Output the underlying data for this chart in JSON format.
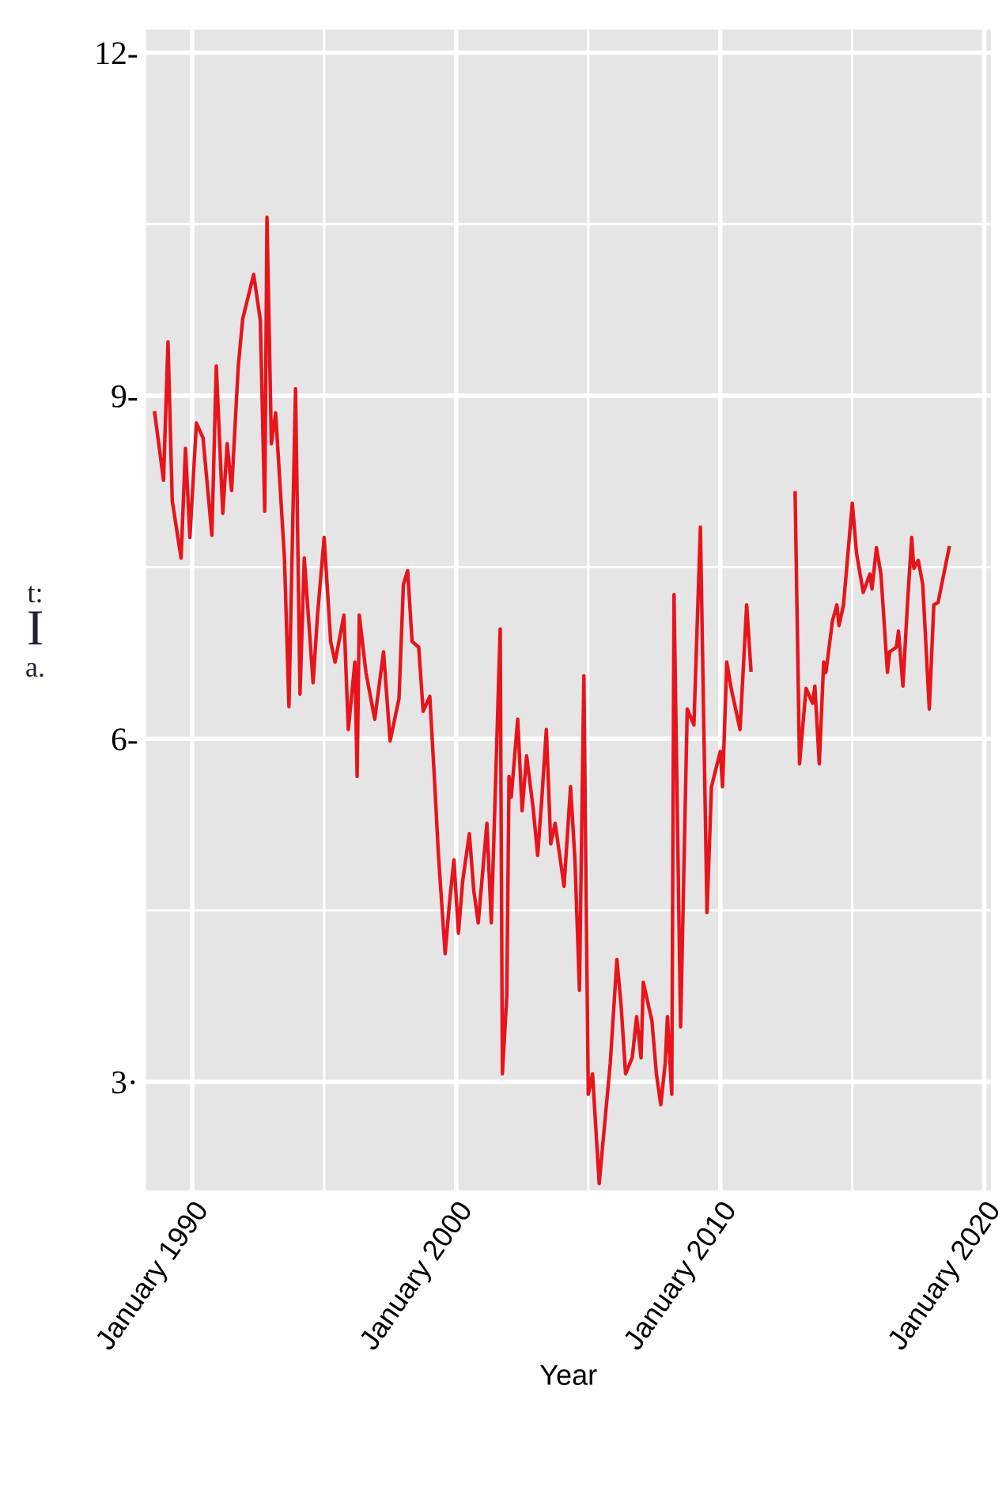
{
  "chart_data": {
    "type": "line",
    "xlabel": "Year",
    "annotations": [
      "t:",
      "I",
      "a."
    ],
    "xlim": [
      "1988-04",
      "2020-04"
    ],
    "ylim": [
      2.05,
      12.2
    ],
    "xticks": [
      {
        "value": "1990-01",
        "label": "January 1990"
      },
      {
        "value": "2000-01",
        "label": "January 2000"
      },
      {
        "value": "2010-01",
        "label": "January 2010"
      },
      {
        "value": "2020-01",
        "label": "January 2020"
      }
    ],
    "yticks": [
      {
        "value": 3,
        "label": "3·"
      },
      {
        "value": 6,
        "label": "6-"
      },
      {
        "value": 9,
        "label": "9-"
      },
      {
        "value": 12,
        "label": "12-"
      }
    ],
    "grid": true,
    "marker": "none",
    "line_style": "solid",
    "series": [
      {
        "color": "#e8141c",
        "x": [
          "1988-08",
          "1988-12",
          "1989-02",
          "1989-04",
          "1989-08",
          "1989-10",
          "1989-12",
          "1990-03",
          "1990-06",
          "1990-10",
          "1990-12",
          "1991-03",
          "1991-05",
          "1991-07",
          "1991-10",
          "1991-12",
          "1992-05",
          "1992-08",
          "1992-10",
          "1992-11",
          "1993-01",
          "1993-03",
          "1993-07",
          "1993-09",
          "1993-12",
          "1994-02",
          "1994-04",
          "1994-08",
          "1994-10",
          "1995-01",
          "1995-04",
          "1995-06",
          "1995-10",
          "1995-12",
          "1996-03",
          "1996-04",
          "1996-05",
          "1996-08",
          "1996-12",
          "1997-04",
          "1997-07",
          "1997-11",
          "1998-01",
          "1998-03",
          "1998-05",
          "1998-08",
          "1998-10",
          "1999-01",
          "1999-03",
          "1999-05",
          "1999-08",
          "1999-10",
          "1999-12",
          "2000-02",
          "2000-04",
          "2000-07",
          "2000-09",
          "2000-11",
          "2001-03",
          "2001-05",
          "2001-09",
          "2001-10",
          "2001-12",
          "2002-01",
          "2002-02",
          "2002-05",
          "2002-07",
          "2002-09",
          "2002-12",
          "2003-02",
          "2003-04",
          "2003-06",
          "2003-08",
          "2003-10",
          "2004-02",
          "2004-05",
          "2004-07",
          "2004-09",
          "2004-11",
          "2005-01",
          "2005-03",
          "2005-06",
          "2005-11",
          "2006-02",
          "2006-04",
          "2006-06",
          "2006-09",
          "2006-11",
          "2007-01",
          "2007-02",
          "2007-06",
          "2007-08",
          "2007-10",
          "2007-12",
          "2008-01",
          "2008-03",
          "2008-04",
          "2008-07",
          "2008-10",
          "2009-01",
          "2009-04",
          "2009-07",
          "2009-09",
          "2010-01",
          "2010-02",
          "2010-04",
          "2010-06",
          "2010-10",
          "2011-01",
          "2011-03",
          "2012-01",
          "2012-11",
          "2013-01",
          "2013-04",
          "2013-07",
          "2013-08",
          "2013-10",
          "2013-12",
          "2014-01",
          "2014-04",
          "2014-06",
          "2014-07",
          "2014-09",
          "2015-01",
          "2015-03",
          "2015-06",
          "2015-09",
          "2015-10",
          "2015-12",
          "2016-02",
          "2016-05",
          "2016-06",
          "2016-09",
          "2016-10",
          "2016-12",
          "2017-02",
          "2017-04",
          "2017-05",
          "2017-07",
          "2017-09",
          "2017-12",
          "2018-02",
          "2018-04",
          "2018-09"
        ],
        "values": [
          8.85,
          8.26,
          9.47,
          8.08,
          7.58,
          8.54,
          7.76,
          8.76,
          8.63,
          7.78,
          9.26,
          7.97,
          8.58,
          8.17,
          9.26,
          9.67,
          10.06,
          9.66,
          7.99,
          10.56,
          8.58,
          8.85,
          7.58,
          6.28,
          9.06,
          6.39,
          7.58,
          6.49,
          7.08,
          7.76,
          6.85,
          6.67,
          7.08,
          6.08,
          6.67,
          5.67,
          7.08,
          6.58,
          6.17,
          6.76,
          5.98,
          6.35,
          7.35,
          7.47,
          6.85,
          6.8,
          6.24,
          6.37,
          5.71,
          4.98,
          4.12,
          4.57,
          4.94,
          4.3,
          4.76,
          5.17,
          4.67,
          4.39,
          5.26,
          4.39,
          6.96,
          3.07,
          3.75,
          5.67,
          5.49,
          6.17,
          5.37,
          5.85,
          5.39,
          4.98,
          5.49,
          6.08,
          5.08,
          5.26,
          4.71,
          5.58,
          4.94,
          3.8,
          6.55,
          2.89,
          3.07,
          2.11,
          3.16,
          4.07,
          3.66,
          3.07,
          3.21,
          3.57,
          3.21,
          3.87,
          3.53,
          3.07,
          2.8,
          3.16,
          3.57,
          2.89,
          7.26,
          3.48,
          6.26,
          6.12,
          7.85,
          4.48,
          5.58,
          5.89,
          5.58,
          6.67,
          6.44,
          6.08,
          7.17,
          6.6,
          null,
          8.15,
          5.78,
          6.44,
          6.31,
          6.46,
          5.78,
          6.67,
          6.58,
          7.03,
          7.17,
          6.99,
          7.17,
          8.06,
          7.62,
          7.28,
          7.44,
          7.31,
          7.67,
          7.44,
          6.58,
          6.76,
          6.8,
          6.94,
          6.46,
          7.17,
          7.76,
          7.49,
          7.56,
          7.35,
          6.26,
          7.17,
          7.19,
          7.67
        ]
      }
    ]
  }
}
